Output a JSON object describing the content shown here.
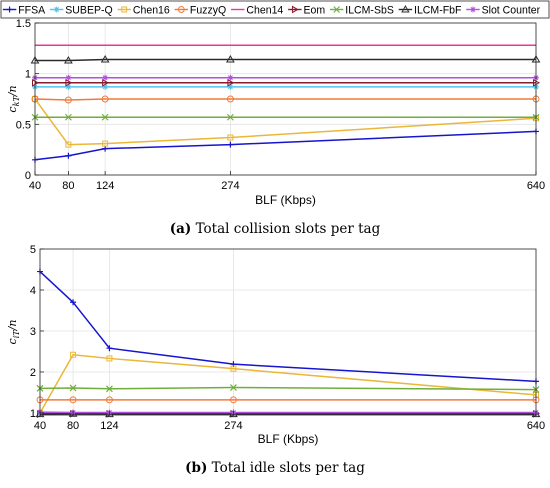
{
  "legend": [
    "FFSA",
    "SUBEP-Q",
    "Chen16",
    "FuzzyQ",
    "Chen14",
    "Eom",
    "ILCM-SbS",
    "ILCM-FbF",
    "Slot Counter"
  ],
  "series_styles": [
    {
      "name": "FFSA",
      "color": "#1515d0",
      "marker": "plus"
    },
    {
      "name": "SUBEP-Q",
      "color": "#4fc3ef",
      "marker": "star"
    },
    {
      "name": "Chen16",
      "color": "#eab737",
      "marker": "square"
    },
    {
      "name": "FuzzyQ",
      "color": "#f07a3a",
      "marker": "circle"
    },
    {
      "name": "Chen14",
      "color": "#e8369e",
      "marker": "none"
    },
    {
      "name": "Eom",
      "color": "#8b1a2c",
      "marker": "triangle-right"
    },
    {
      "name": "ILCM-SbS",
      "color": "#6fae3c",
      "marker": "x"
    },
    {
      "name": "ILCM-FbF",
      "color": "#2a2a2a",
      "marker": "triangle-up"
    },
    {
      "name": "Slot Counter",
      "color": "#b04fe0",
      "marker": "star"
    }
  ],
  "chart_data": [
    {
      "type": "line",
      "caption_label": "(a)",
      "caption_text": "Total collision slots per tag",
      "xlabel": "BLF (Kbps)",
      "ylabel": "c_{kT}/n",
      "ylabel_main": "c",
      "ylabel_sub": "kT",
      "ylabel_tail": "/n",
      "x": [
        40,
        80,
        124,
        274,
        640
      ],
      "xticks": [
        40,
        80,
        124,
        274,
        640
      ],
      "xtick_labels": [
        "40",
        "80",
        "124",
        "274",
        "640"
      ],
      "yticks": [
        0,
        0.5,
        1,
        1.5
      ],
      "ytick_labels": [
        "0",
        "0.5",
        "1",
        "1.5"
      ],
      "xlim": [
        40,
        640
      ],
      "ylim": [
        0,
        1.5
      ],
      "grid": true,
      "legend_position": "top",
      "series": [
        {
          "name": "FFSA",
          "values": [
            0.15,
            0.19,
            0.26,
            0.3,
            0.43
          ]
        },
        {
          "name": "SUBEP-Q",
          "values": [
            0.87,
            0.87,
            0.87,
            0.87,
            0.87
          ]
        },
        {
          "name": "Chen16",
          "values": [
            0.75,
            0.3,
            0.31,
            0.37,
            0.56
          ]
        },
        {
          "name": "FuzzyQ",
          "values": [
            0.75,
            0.74,
            0.75,
            0.75,
            0.75
          ]
        },
        {
          "name": "Chen14",
          "values": [
            1.28,
            1.28,
            1.28,
            1.28,
            1.28
          ]
        },
        {
          "name": "Eom",
          "values": [
            0.91,
            0.91,
            0.91,
            0.91,
            0.91
          ]
        },
        {
          "name": "ILCM-SbS",
          "values": [
            0.57,
            0.57,
            0.57,
            0.57,
            0.57
          ]
        },
        {
          "name": "ILCM-FbF",
          "values": [
            1.13,
            1.13,
            1.14,
            1.14,
            1.14
          ]
        },
        {
          "name": "Slot Counter",
          "values": [
            0.96,
            0.96,
            0.96,
            0.96,
            0.96
          ]
        }
      ]
    },
    {
      "type": "line",
      "caption_label": "(b)",
      "caption_text": "Total idle slots per tag",
      "xlabel": "BLF (Kbps)",
      "ylabel": "c_{iT}/n",
      "ylabel_main": "c",
      "ylabel_sub": "iT",
      "ylabel_tail": "/n",
      "x": [
        40,
        80,
        124,
        274,
        640
      ],
      "xticks": [
        40,
        80,
        124,
        274,
        640
      ],
      "xtick_labels": [
        "40",
        "80",
        "124",
        "274",
        "640"
      ],
      "yticks": [
        1,
        2,
        3,
        4,
        5
      ],
      "ytick_labels": [
        "1",
        "2",
        "3",
        "4",
        "5"
      ],
      "xlim": [
        40,
        640
      ],
      "ylim": [
        0.95,
        5
      ],
      "grid": true,
      "series": [
        {
          "name": "FFSA",
          "values": [
            4.45,
            3.7,
            2.58,
            2.19,
            1.77
          ]
        },
        {
          "name": "SUBEP-Q",
          "values": [
            1.0,
            1.0,
            1.0,
            1.0,
            1.0
          ]
        },
        {
          "name": "Chen16",
          "values": [
            1.0,
            2.42,
            2.33,
            2.08,
            1.44
          ]
        },
        {
          "name": "FuzzyQ",
          "values": [
            1.32,
            1.32,
            1.32,
            1.32,
            1.32
          ]
        },
        {
          "name": "Chen14",
          "values": [
            0.99,
            1.0,
            0.99,
            1.0,
            1.0
          ]
        },
        {
          "name": "Eom",
          "values": [
            0.97,
            0.98,
            0.98,
            0.98,
            0.98
          ]
        },
        {
          "name": "ILCM-SbS",
          "values": [
            1.6,
            1.61,
            1.59,
            1.62,
            1.57
          ]
        },
        {
          "name": "ILCM-FbF",
          "values": [
            0.97,
            0.98,
            0.97,
            0.97,
            0.97
          ]
        },
        {
          "name": "Slot Counter",
          "values": [
            1.02,
            1.01,
            1.01,
            1.01,
            1.01
          ]
        }
      ]
    }
  ]
}
